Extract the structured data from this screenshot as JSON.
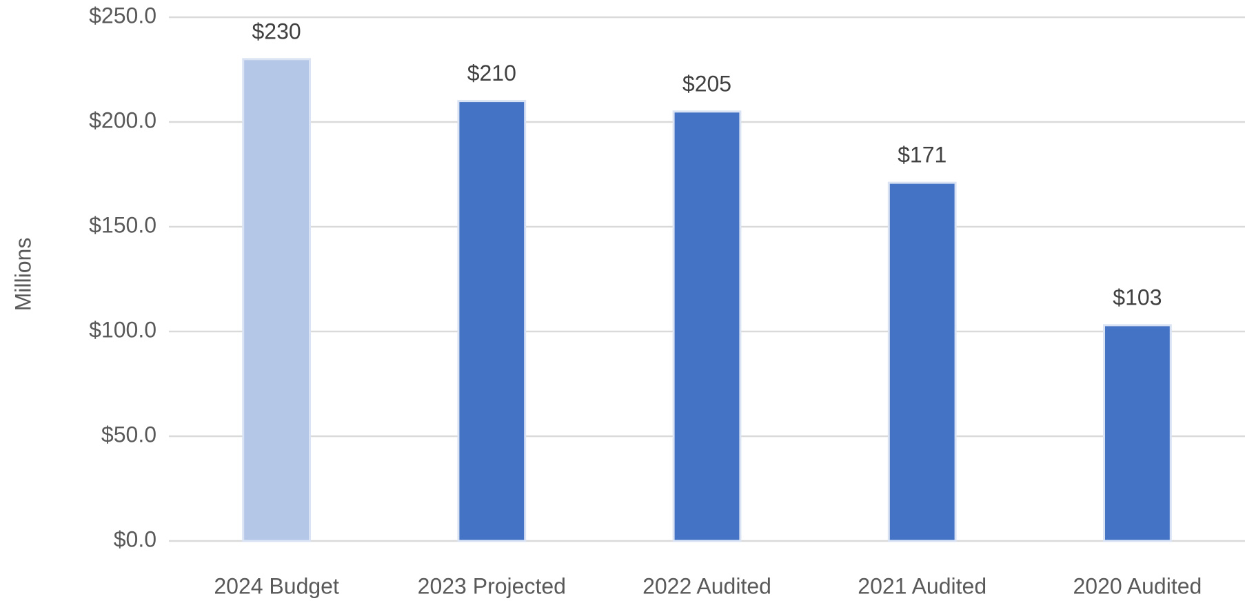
{
  "chart_data": {
    "type": "bar",
    "y_label": "Millions",
    "categories": [
      "2024 Budget",
      "2023 Projected",
      "2022 Audited",
      "2021 Audited",
      "2020 Audited"
    ],
    "values": [
      230,
      210,
      205,
      171,
      103
    ],
    "value_labels": [
      "$230",
      "$210",
      "$205",
      "$171",
      "$103"
    ],
    "colors": [
      "#b4c7e7",
      "#4472c4",
      "#4472c4",
      "#4472c4",
      "#4472c4"
    ],
    "ylim": [
      0,
      250
    ],
    "yticks": [
      {
        "value": 0,
        "label": "$0.0"
      },
      {
        "value": 50,
        "label": "$50.0"
      },
      {
        "value": 100,
        "label": "$100.0"
      },
      {
        "value": 150,
        "label": "$150.0"
      },
      {
        "value": 200,
        "label": "$200.0"
      },
      {
        "value": 250,
        "label": "$250.0"
      }
    ],
    "grid": true
  }
}
